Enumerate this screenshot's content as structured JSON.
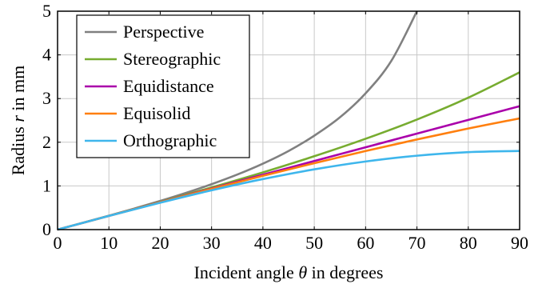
{
  "chart_data": {
    "type": "line",
    "xlabel": "Incident angle θ in degrees",
    "xlabel_parts": [
      "Incident angle ",
      "θ",
      " in degrees"
    ],
    "ylabel": "Radius r in mm",
    "ylabel_parts": [
      "Radius ",
      "r",
      " in mm"
    ],
    "xlim": [
      0,
      90
    ],
    "ylim": [
      0,
      5
    ],
    "xticks": [
      0,
      10,
      20,
      30,
      40,
      50,
      60,
      70,
      80,
      90
    ],
    "yticks": [
      0,
      1,
      2,
      3,
      4,
      5
    ],
    "x_tick_labels": [
      "0",
      "10",
      "20",
      "30",
      "40",
      "50",
      "60",
      "70",
      "80",
      "90"
    ],
    "y_tick_labels": [
      "0",
      "1",
      "2",
      "3",
      "4",
      "5"
    ],
    "grid": true,
    "legend_position": "top-left",
    "series": [
      {
        "name": "Perspective",
        "color": "#808080",
        "x": [
          0,
          5,
          10,
          15,
          20,
          25,
          30,
          35,
          40,
          45,
          50,
          55,
          60,
          65,
          70
        ],
        "y": [
          0,
          0.158,
          0.318,
          0.484,
          0.657,
          0.841,
          1.04,
          1.26,
          1.51,
          1.8,
          2.15,
          2.57,
          3.12,
          3.86,
          5.0
        ]
      },
      {
        "name": "Stereographic",
        "color": "#77ac30",
        "x": [
          0,
          10,
          20,
          30,
          40,
          50,
          60,
          70,
          80,
          90
        ],
        "y": [
          0,
          0.315,
          0.635,
          0.965,
          1.31,
          1.68,
          2.08,
          2.52,
          3.02,
          3.6
        ]
      },
      {
        "name": "Equidistance",
        "color": "#aa00aa",
        "x": [
          0,
          10,
          20,
          30,
          40,
          50,
          60,
          70,
          80,
          90
        ],
        "y": [
          0,
          0.314,
          0.628,
          0.942,
          1.256,
          1.57,
          1.884,
          2.198,
          2.512,
          2.826
        ]
      },
      {
        "name": "Equisolid",
        "color": "#ff7f0e",
        "x": [
          0,
          10,
          20,
          30,
          40,
          50,
          60,
          70,
          80,
          90
        ],
        "y": [
          0,
          0.313,
          0.625,
          0.932,
          1.231,
          1.521,
          1.8,
          2.064,
          2.314,
          2.546
        ]
      },
      {
        "name": "Orthographic",
        "color": "#3eb6ec",
        "x": [
          0,
          10,
          20,
          30,
          40,
          50,
          60,
          70,
          80,
          90
        ],
        "y": [
          0,
          0.313,
          0.616,
          0.9,
          1.157,
          1.379,
          1.559,
          1.692,
          1.773,
          1.8
        ]
      }
    ]
  }
}
